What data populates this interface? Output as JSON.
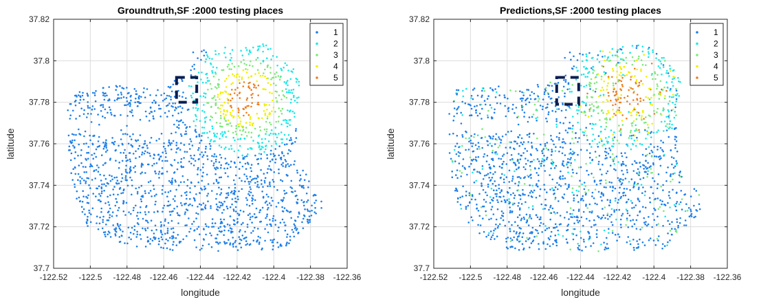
{
  "colors": {
    "1": "#1f7fe8",
    "2": "#1ee6e6",
    "3": "#7ee87a",
    "4": "#f0f000",
    "5": "#ee7d1d",
    "dash_box": "#0a1e50",
    "grid": "#dcdcdc"
  },
  "chart_data": [
    {
      "type": "scatter",
      "title": "Groundtruth,SF :2000 testing places",
      "xlabel": "longitude",
      "ylabel": "latitude",
      "xlim": [
        -122.52,
        -122.36
      ],
      "ylim": [
        37.7,
        37.82
      ],
      "xticks": [
        -122.52,
        -122.5,
        -122.48,
        -122.46,
        -122.44,
        -122.42,
        -122.4,
        -122.38,
        -122.36
      ],
      "yticks": [
        37.7,
        37.72,
        37.74,
        37.76,
        37.78,
        37.8,
        37.82
      ],
      "xtick_labels": [
        "-122.52",
        "-122.5",
        "-122.48",
        "-122.46",
        "-122.44",
        "-122.42",
        "-122.4",
        "-122.38",
        "-122.36"
      ],
      "ytick_labels": [
        "37.7",
        "37.72",
        "37.74",
        "37.76",
        "37.78",
        "37.8",
        "37.82"
      ],
      "grid": true,
      "legend_position": "top-right",
      "legend": [
        "1",
        "2",
        "3",
        "4",
        "5"
      ],
      "num_points": 2000,
      "noise": 0.0,
      "hotspot_center": [
        -122.415,
        37.782
      ],
      "annotation_box": {
        "x": [
          -122.453,
          -122.442
        ],
        "y": [
          37.78,
          37.792
        ]
      }
    },
    {
      "type": "scatter",
      "title": "Predictions,SF :2000 testing places",
      "xlabel": "longitude",
      "ylabel": "latitude",
      "xlim": [
        -122.52,
        -122.36
      ],
      "ylim": [
        37.7,
        37.82
      ],
      "xticks": [
        -122.52,
        -122.5,
        -122.48,
        -122.46,
        -122.44,
        -122.42,
        -122.4,
        -122.38,
        -122.36
      ],
      "yticks": [
        37.7,
        37.72,
        37.74,
        37.76,
        37.78,
        37.8,
        37.82
      ],
      "xtick_labels": [
        "-122.52",
        "-122.5",
        "-122.48",
        "-122.46",
        "-122.44",
        "-122.42",
        "-122.4",
        "-122.38",
        "-122.36"
      ],
      "ytick_labels": [
        "37.7",
        "37.72",
        "37.74",
        "37.76",
        "37.78",
        "37.8",
        "37.82"
      ],
      "grid": true,
      "legend_position": "top-right",
      "legend": [
        "1",
        "2",
        "3",
        "4",
        "5"
      ],
      "num_points": 2000,
      "noise": 0.28,
      "hotspot_center": [
        -122.415,
        37.784
      ],
      "annotation_box": {
        "x": [
          -122.453,
          -122.441
        ],
        "y": [
          37.779,
          37.792
        ]
      }
    }
  ]
}
